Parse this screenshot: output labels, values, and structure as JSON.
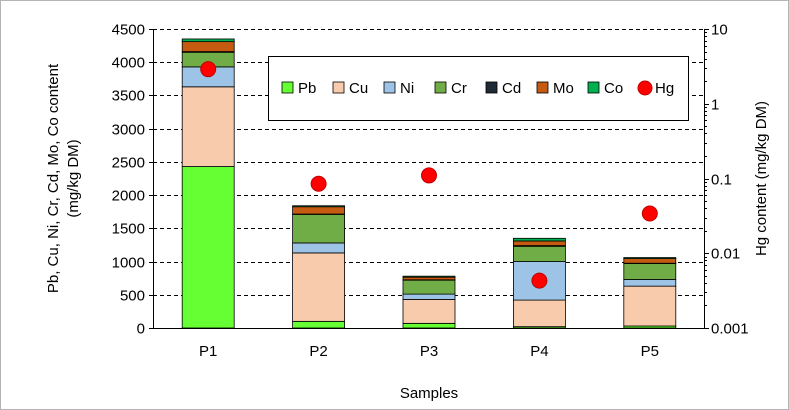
{
  "chart_data": {
    "type": "bar",
    "stacked": true,
    "categories": [
      "P1",
      "P2",
      "P3",
      "P4",
      "P5"
    ],
    "xlabel": "Samples",
    "ylabel_lines": [
      "Pb, Cu, Ni, Cr, Cd, Mo, Co content",
      "(mg/kg DM)"
    ],
    "ylim": [
      0,
      4500
    ],
    "yticks": [
      0,
      500,
      1000,
      1500,
      2000,
      2500,
      3000,
      3500,
      4000,
      4500
    ],
    "ytick_labels": [
      "0",
      "500",
      "1000",
      "1500",
      "2000",
      "2500",
      "3000",
      "3500",
      "4000",
      "4500"
    ],
    "y2label": "Hg content (mg/kg DM)",
    "y2scale": "log",
    "y2lim": [
      0.001,
      10
    ],
    "y2ticks": [
      0.001,
      0.01,
      0.1,
      1,
      10
    ],
    "y2tick_labels": [
      "0.001",
      "0.01",
      "0.1",
      "1",
      "10"
    ],
    "grid": "horizontal dashed",
    "legend_position": "top-right",
    "series": [
      {
        "name": "Pb",
        "color": "#66ff33",
        "values": [
          2430,
          100,
          70,
          20,
          30
        ]
      },
      {
        "name": "Cu",
        "color": "#f8cbad",
        "values": [
          1200,
          1030,
          360,
          400,
          600
        ]
      },
      {
        "name": "Ni",
        "color": "#9dc3e6",
        "values": [
          300,
          150,
          80,
          580,
          100
        ]
      },
      {
        "name": "Cr",
        "color": "#70ad47",
        "values": [
          220,
          430,
          210,
          230,
          240
        ]
      },
      {
        "name": "Cd",
        "color": "#1f2a36",
        "values": [
          10,
          5,
          5,
          10,
          5
        ]
      },
      {
        "name": "Mo",
        "color": "#c55a11",
        "values": [
          150,
          110,
          40,
          70,
          70
        ]
      },
      {
        "name": "Co",
        "color": "#00b050",
        "values": [
          40,
          15,
          15,
          40,
          15
        ]
      }
    ],
    "secondary_series": {
      "name": "Hg",
      "type": "scatter",
      "axis": "right",
      "color": "#ff0000",
      "values": [
        2.9,
        0.085,
        0.11,
        0.0043,
        0.034
      ]
    }
  }
}
